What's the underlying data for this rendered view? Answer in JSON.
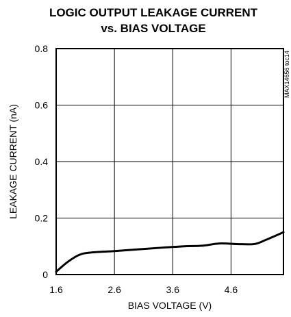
{
  "chart_data": {
    "type": "line",
    "title_lines": [
      "LOGIC  OUTPUT LEAKAGE CURRENT",
      "vs. BIAS VOLTAGE"
    ],
    "xlabel": "BIAS VOLTAGE (V)",
    "ylabel": "LEAKAGE CURRENT (nA)",
    "figure_id": "MAX14656 toc14",
    "xlim": [
      1.6,
      5.5
    ],
    "ylim": [
      0,
      0.8
    ],
    "x_ticks": [
      1.6,
      2.6,
      3.6,
      4.6
    ],
    "x_tick_labels": [
      "1.6",
      "2.6",
      "3.6",
      "4.6"
    ],
    "y_ticks": [
      0,
      0.2,
      0.4,
      0.6,
      0.8
    ],
    "y_tick_labels": [
      "0",
      "0.2",
      "0.4",
      "0.6",
      "0.8"
    ],
    "grid": true,
    "line_color": "#000000",
    "series": [
      {
        "x": [
          1.6,
          1.8,
          2.0,
          2.2,
          2.6,
          3.0,
          3.4,
          3.8,
          4.1,
          4.4,
          4.7,
          5.0,
          5.2,
          5.5
        ],
        "y": [
          0.01,
          0.045,
          0.07,
          0.078,
          0.083,
          0.089,
          0.095,
          0.1,
          0.102,
          0.11,
          0.108,
          0.108,
          0.123,
          0.15
        ]
      }
    ]
  }
}
